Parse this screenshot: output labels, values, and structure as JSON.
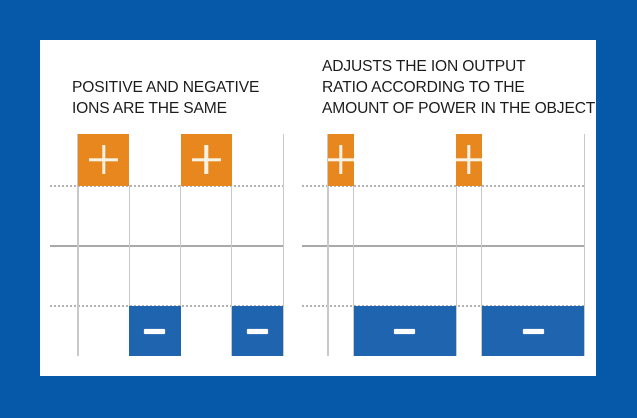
{
  "colors": {
    "bg": "#0559A8",
    "panel": "#FFFFFF",
    "orange": "#E8871E",
    "blue": "#1E64AF",
    "plus": "#F7F2E4",
    "minus": "#FDFDFD",
    "grid": "#C9C9C9",
    "axis": "#A9A9A9",
    "dotted": "#B3B3B3",
    "text": "#1C1C1C"
  },
  "charts": [
    {
      "name": "equal-ion-output",
      "title": "POSITIVE AND NEGATIVE\nIONS ARE THE SAME",
      "bars": [
        {
          "icon": "plus",
          "polarity": "positive",
          "amount": 1,
          "level": 1
        },
        {
          "icon": "minus",
          "polarity": "negative",
          "amount": 1,
          "level": -1
        },
        {
          "icon": "plus",
          "polarity": "positive",
          "amount": 1,
          "level": 1
        },
        {
          "icon": "minus",
          "polarity": "negative",
          "amount": 1,
          "level": -1
        }
      ]
    },
    {
      "name": "adjusted-ion-ratio",
      "title": "ADJUSTS THE ION OUTPUT\nRATIO ACCORDING TO THE\nAMOUNT OF POWER IN THE OBJECT",
      "bars": [
        {
          "icon": "plus",
          "polarity": "positive",
          "amount": 0.5,
          "level": 1
        },
        {
          "icon": "minus",
          "polarity": "negative",
          "amount": 2,
          "level": -1
        },
        {
          "icon": "plus",
          "polarity": "positive",
          "amount": 0.5,
          "level": 1
        },
        {
          "icon": "minus",
          "polarity": "negative",
          "amount": 2,
          "level": -1
        }
      ]
    }
  ]
}
